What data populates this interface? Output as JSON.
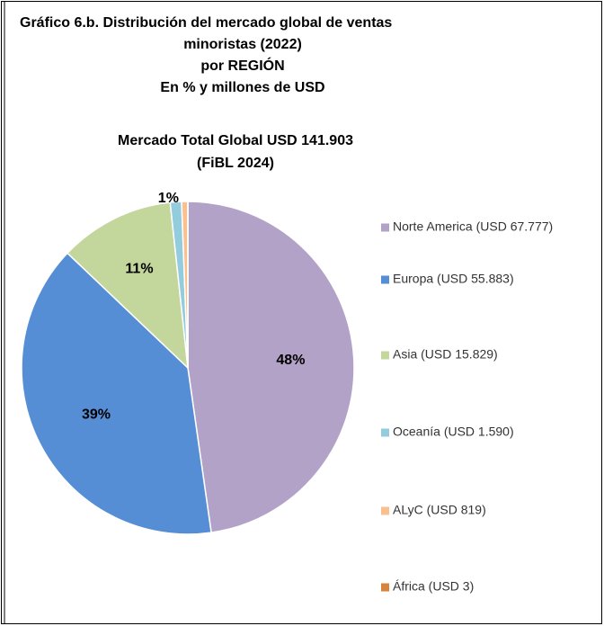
{
  "chart_data": {
    "type": "pie",
    "title": [
      "Gráfico 6.b. Distribución del mercado global de ventas",
      "minoristas (2022)",
      "por REGIÓN",
      "En % y millones de USD"
    ],
    "subtitle": [
      "Mercado Total Global USD 141.903",
      "(FiBL 2024)"
    ],
    "categories": [
      "Norte America (USD 67.777)",
      "Europa (USD 55.883)",
      "Asia (USD 15.829)",
      "Oceanía (USD 1.590)",
      "ALyC (USD 819)",
      "África (USD 3)"
    ],
    "values": [
      47.8,
      39.4,
      11.2,
      1.1,
      0.6,
      0.002
    ],
    "value_labels": [
      "48%",
      "39%",
      "11%",
      "1%",
      null,
      null
    ],
    "colors": [
      "#b3a2c7",
      "#558ed5",
      "#c3d69b",
      "#93cddd",
      "#fac090",
      "#d9823b"
    ],
    "legend": "right"
  }
}
